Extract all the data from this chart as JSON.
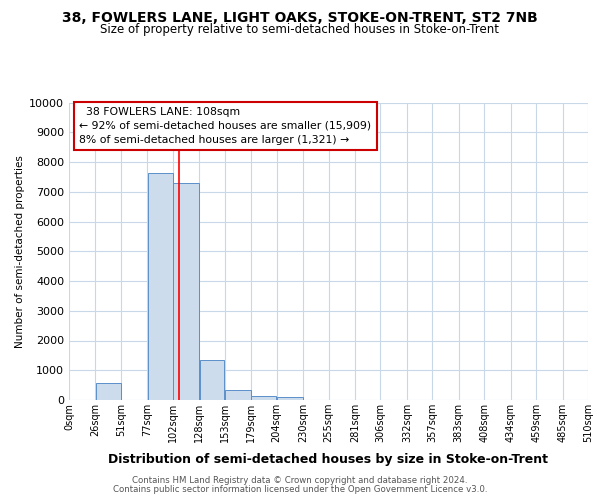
{
  "title1": "38, FOWLERS LANE, LIGHT OAKS, STOKE-ON-TRENT, ST2 7NB",
  "title2": "Size of property relative to semi-detached houses in Stoke-on-Trent",
  "xlabel": "Distribution of semi-detached houses by size in Stoke-on-Trent",
  "ylabel": "Number of semi-detached properties",
  "footer1": "Contains HM Land Registry data © Crown copyright and database right 2024.",
  "footer2": "Contains public sector information licensed under the Open Government Licence v3.0.",
  "bin_edges": [
    0,
    26,
    51,
    77,
    102,
    128,
    153,
    179,
    204,
    230,
    255,
    281,
    306,
    332,
    357,
    383,
    408,
    434,
    459,
    485,
    510
  ],
  "bin_labels": [
    "0sqm",
    "26sqm",
    "51sqm",
    "77sqm",
    "102sqm",
    "128sqm",
    "153sqm",
    "179sqm",
    "204sqm",
    "230sqm",
    "255sqm",
    "281sqm",
    "306sqm",
    "332sqm",
    "357sqm",
    "383sqm",
    "408sqm",
    "434sqm",
    "459sqm",
    "485sqm",
    "510sqm"
  ],
  "bar_heights": [
    0,
    560,
    0,
    7620,
    7280,
    1340,
    340,
    150,
    110,
    0,
    0,
    0,
    0,
    0,
    0,
    0,
    0,
    0,
    0,
    0
  ],
  "bar_color": "#ccdcec",
  "bar_edge_color": "#5b8fc9",
  "red_line_x": 108,
  "ylim": [
    0,
    10000
  ],
  "yticks": [
    0,
    1000,
    2000,
    3000,
    4000,
    5000,
    6000,
    7000,
    8000,
    9000,
    10000
  ],
  "annotation_title": "38 FOWLERS LANE: 108sqm",
  "annotation_line1": "← 92% of semi-detached houses are smaller (15,909)",
  "annotation_line2": "8% of semi-detached houses are larger (1,321) →",
  "annotation_box_color": "#ffffff",
  "annotation_box_edge": "#cc0000",
  "plot_bg_color": "#ffffff",
  "fig_bg_color": "#ffffff",
  "grid_color": "#c8d8e8"
}
